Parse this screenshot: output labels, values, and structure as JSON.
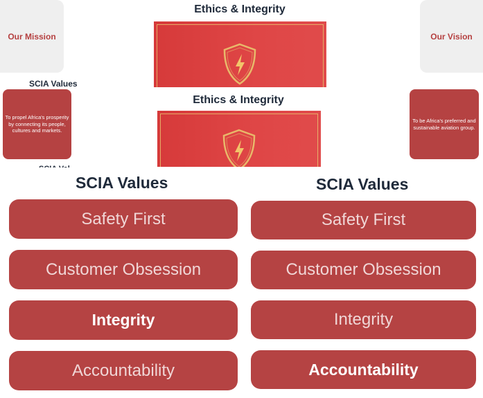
{
  "top": {
    "mission_label": "Our Mission",
    "vision_label": "Our Vision",
    "ethics_title_1": "Ethics & Integrity",
    "ethics_title_2": "Ethics & Integrity",
    "small_values_heading": "SCIA Values",
    "cut_heading": "SCIA Val",
    "mission_text": "To propel Africa's prosperity by connecting its people, cultures and markets.",
    "vision_text": "To be Africa's preferred and sustainable aviation group."
  },
  "left_panel": {
    "heading": "SCIA Values",
    "values": [
      {
        "label": "Safety First",
        "selected": false
      },
      {
        "label": "Customer Obsession",
        "selected": false
      },
      {
        "label": "Integrity",
        "selected": true
      },
      {
        "label": "Accountability",
        "selected": false
      }
    ]
  },
  "right_panel": {
    "heading": "SCIA Values",
    "values": [
      {
        "label": "Safety First",
        "selected": false
      },
      {
        "label": "Customer Obsession",
        "selected": false
      },
      {
        "label": "Integrity",
        "selected": false
      },
      {
        "label": "Accountability",
        "selected": true
      }
    ]
  },
  "colors": {
    "brand_red": "#b54343",
    "banner_red": "#d63a3a",
    "gold": "#e8b86a",
    "heading": "#1f2a3a"
  }
}
